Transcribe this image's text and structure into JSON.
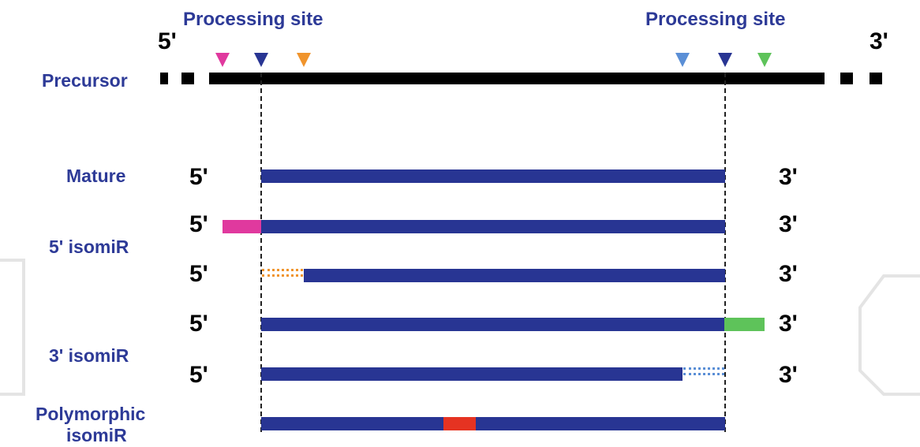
{
  "header": {
    "processing_left": "Processing site",
    "processing_right": "Processing site",
    "end5": "5'",
    "end3": "3'"
  },
  "rows": {
    "precursor": "Precursor",
    "mature": "Mature",
    "isomir5": "5' isomiR",
    "isomir3": "3' isomiR",
    "polymorphic_line1": "Polymorphic",
    "polymorphic_line2": "isomiR"
  },
  "ends": {
    "five": "5'",
    "three": "3'"
  },
  "colors": {
    "label": "#2d3a97",
    "rna": "#283593",
    "precursor": "#000000",
    "pink": "#e0399e",
    "orange": "#f0942c",
    "light_blue": "#5b8fd6",
    "green": "#5ec35a",
    "red": "#e53322"
  }
}
